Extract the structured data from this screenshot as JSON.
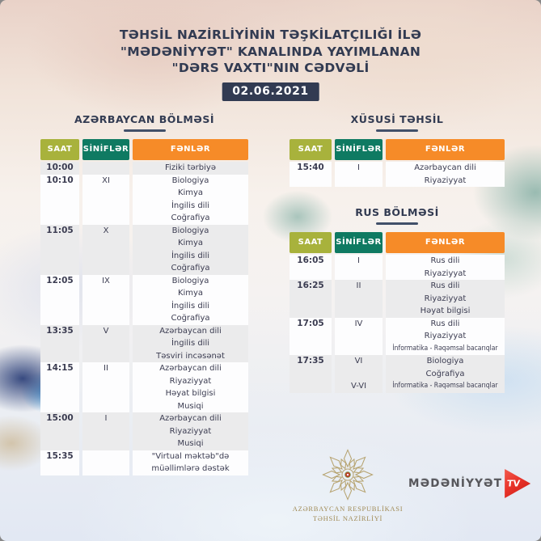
{
  "title": {
    "line1": "TƏHSİL NAZİRLİYİNİN TƏŞKİLATÇILIĞI İLƏ",
    "line2": "\"MƏDƏNİYYƏT\" KANALINDA YAYIMLANAN",
    "line3": "\"DƏRS VAXTI\"NIN CƏDVƏLİ",
    "date": "02.06.2021"
  },
  "columns": [
    "SAAT",
    "SİNİFLƏR",
    "FƏNLƏR"
  ],
  "sections": [
    {
      "id": "azerbaycan",
      "title": "AZƏRBAYCAN BÖLMƏSİ",
      "first_row_shaded": true,
      "rows": [
        {
          "saat": "10:00",
          "sinif": "",
          "fenler": [
            "Fiziki tərbiyə"
          ]
        },
        {
          "saat": "10:10",
          "sinif": "XI",
          "fenler": [
            "Biologiya",
            "Kimya",
            "İngilis dili",
            "Coğrafiya"
          ]
        },
        {
          "saat": "11:05",
          "sinif": "X",
          "fenler": [
            "Biologiya",
            "Kimya",
            "İngilis dili",
            "Coğrafiya"
          ]
        },
        {
          "saat": "12:05",
          "sinif": "IX",
          "fenler": [
            "Biologiya",
            "Kimya",
            "İngilis dili",
            "Coğrafiya"
          ]
        },
        {
          "saat": "13:35",
          "sinif": "V",
          "fenler": [
            "Azərbaycan dili",
            "İngilis dili",
            "Təsviri incəsənət"
          ]
        },
        {
          "saat": "14:15",
          "sinif": "II",
          "fenler": [
            "Azərbaycan dili",
            "Riyaziyyat",
            "Həyat bilgisi",
            "Musiqi"
          ]
        },
        {
          "saat": "15:00",
          "sinif": "I",
          "fenler": [
            "Azərbaycan dili",
            "Riyaziyyat",
            "Musiqi"
          ]
        },
        {
          "saat": "15:35",
          "sinif": "",
          "fenler": [
            "\"Virtual məktəb\"də",
            "müəllimlərə dəstək"
          ]
        }
      ]
    },
    {
      "id": "xususi",
      "title": "XÜSUSİ TƏHSİL",
      "first_row_shaded": false,
      "rows": [
        {
          "saat": "15:40",
          "sinif": "I",
          "fenler": [
            "Azərbaycan dili",
            "Riyaziyyat"
          ]
        }
      ]
    },
    {
      "id": "rus",
      "title": "RUS BÖLMƏSİ",
      "first_row_shaded": false,
      "rows": [
        {
          "saat": "16:05",
          "sinif": "I",
          "fenler": [
            "Rus dili",
            "Riyaziyyat"
          ]
        },
        {
          "saat": "16:25",
          "sinif": "II",
          "fenler": [
            "Rus dili",
            "Riyaziyyat",
            "Həyat bilgisi"
          ]
        },
        {
          "saat": "17:05",
          "sinif": "IV",
          "fenler": [
            "Rus dili",
            "Riyaziyyat",
            "İnformatika - Rəqəmsal bacarıqlar"
          ]
        },
        {
          "saat": "17:35",
          "sinif": "VI",
          "sinif2": "V-VI",
          "fenler": [
            "Biologiya",
            "Coğrafiya",
            "İnformatika - Rəqəmsal bacarıqlar"
          ]
        }
      ]
    }
  ],
  "footer": {
    "ministry_line1": "AZƏRBAYCAN RESPUBLİKASI",
    "ministry_line2": "TƏHSİL NAZİRLİYİ",
    "channel_name": "MƏDƏNİYYƏT",
    "channel_tv": "TV"
  },
  "colors": {
    "saat_header": "#a8b23c",
    "sinif_header": "#0f7a62",
    "fen_header": "#f68b28",
    "navy": "#323b52",
    "row_gray": "#ebebec",
    "row_white": "#fdfdfe",
    "gold": "#a08a55",
    "tv_red": "#e8332a"
  }
}
